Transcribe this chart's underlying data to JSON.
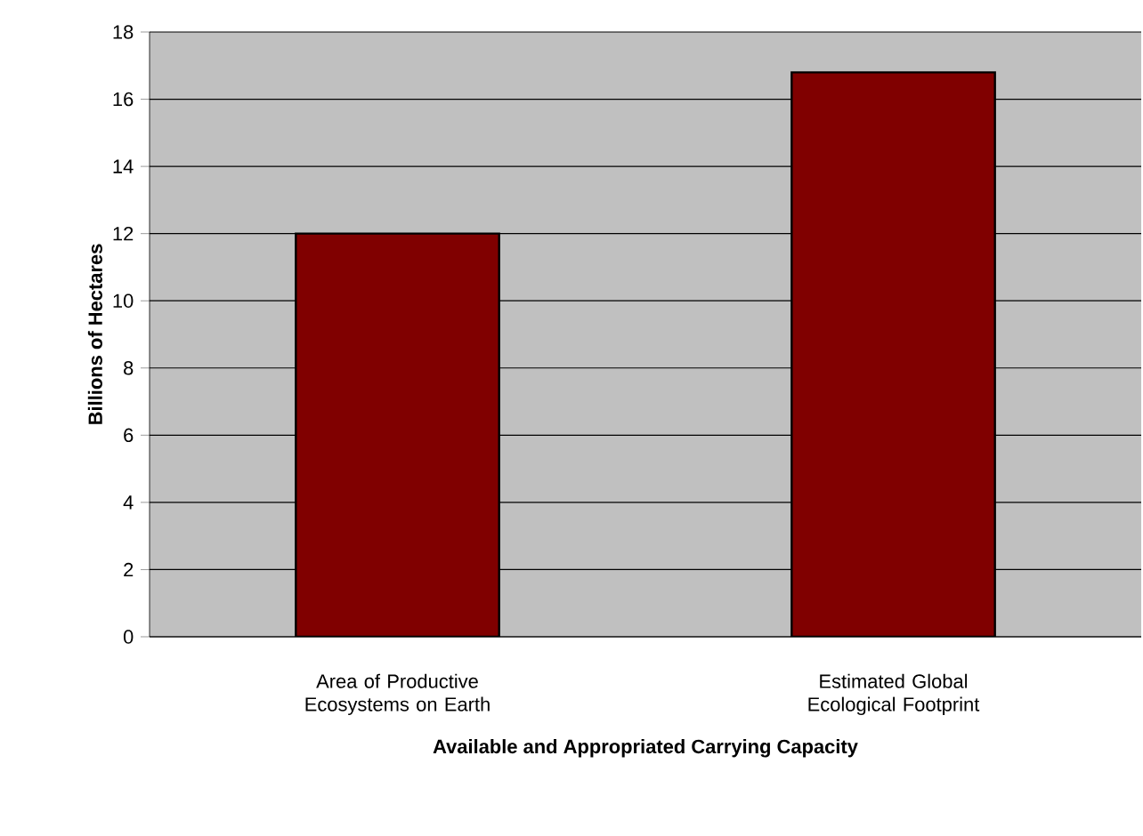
{
  "chart_data": {
    "type": "bar",
    "xlabel": "Available and Appropriated Carrying Capacity",
    "ylabel": "Billions of Hectares",
    "categories": [
      "Area of Productive Ecosystems on Earth",
      "Estimated Global Ecological Footprint"
    ],
    "values": [
      12,
      16.8
    ],
    "color": "#800000",
    "ylim": [
      0,
      18
    ],
    "yticks": [
      0,
      2,
      4,
      6,
      8,
      10,
      12,
      14,
      16,
      18
    ],
    "grid": "y"
  }
}
